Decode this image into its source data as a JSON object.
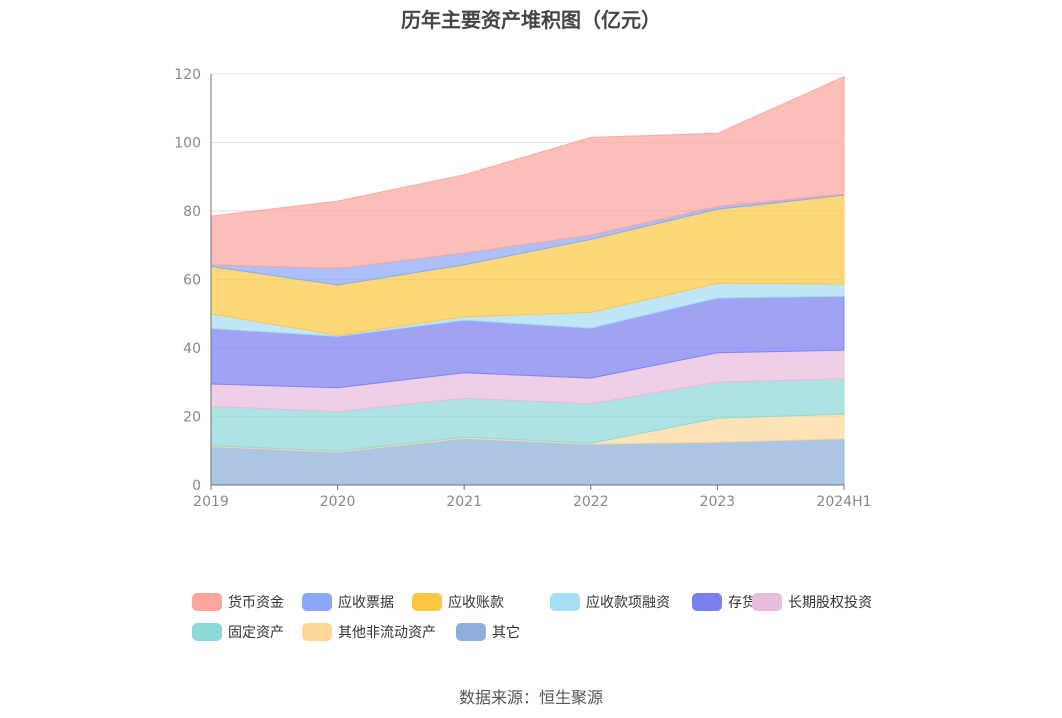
{
  "title": "历年主要资产堆积图（亿元）",
  "source": "数据来源：恒生聚源",
  "chart_data": {
    "type": "area",
    "stacked": true,
    "title": "历年主要资产堆积图（亿元）",
    "xlabel": "",
    "ylabel": "",
    "categories": [
      "2019",
      "2020",
      "2021",
      "2022",
      "2023",
      "2024H1"
    ],
    "y_ticks": [
      "0",
      "20",
      "40",
      "60",
      "80",
      "100",
      "120"
    ],
    "ylim": [
      0,
      120
    ],
    "grid": true,
    "legend_position": "bottom",
    "series": [
      {
        "name": "其它",
        "color": "#8eaedb",
        "values": [
          11.2,
          9.6,
          13.6,
          11.9,
          12.5,
          13.5
        ]
      },
      {
        "name": "其他非流动资产",
        "color": "#fdd89a",
        "values": [
          0.3,
          0.3,
          0.4,
          0.3,
          7.0,
          7.2
        ]
      },
      {
        "name": "固定资产",
        "color": "#8dd8d8",
        "values": [
          11.5,
          11.5,
          11.3,
          11.5,
          10.5,
          10.3
        ]
      },
      {
        "name": "长期股权投资",
        "color": "#e7bcdc",
        "values": [
          6.5,
          7.0,
          7.5,
          7.5,
          8.6,
          8.4
        ]
      },
      {
        "name": "存货",
        "color": "#7b80f0",
        "values": [
          16.2,
          15.0,
          15.3,
          14.6,
          16.0,
          15.7
        ]
      },
      {
        "name": "应收款项融资",
        "color": "#a8def5",
        "values": [
          4.3,
          0.3,
          1.0,
          4.6,
          4.3,
          3.6
        ]
      },
      {
        "name": "应收账款",
        "color": "#fdc744",
        "values": [
          13.8,
          14.7,
          15.2,
          21.3,
          21.6,
          25.9
        ]
      },
      {
        "name": "应收票据",
        "color": "#8aa7f8",
        "values": [
          0.5,
          4.8,
          3.4,
          1.2,
          0.8,
          0.3
        ]
      },
      {
        "name": "货币资金",
        "color": "#fba59c",
        "values": [
          14.2,
          19.7,
          22.9,
          28.6,
          21.4,
          34.3
        ]
      }
    ],
    "legend_order": [
      "货币资金",
      "应收票据",
      "应收账款",
      "应收款项融资",
      "存货",
      "长期股权投资",
      "固定资产",
      "其他非流动资产",
      "其它"
    ]
  }
}
